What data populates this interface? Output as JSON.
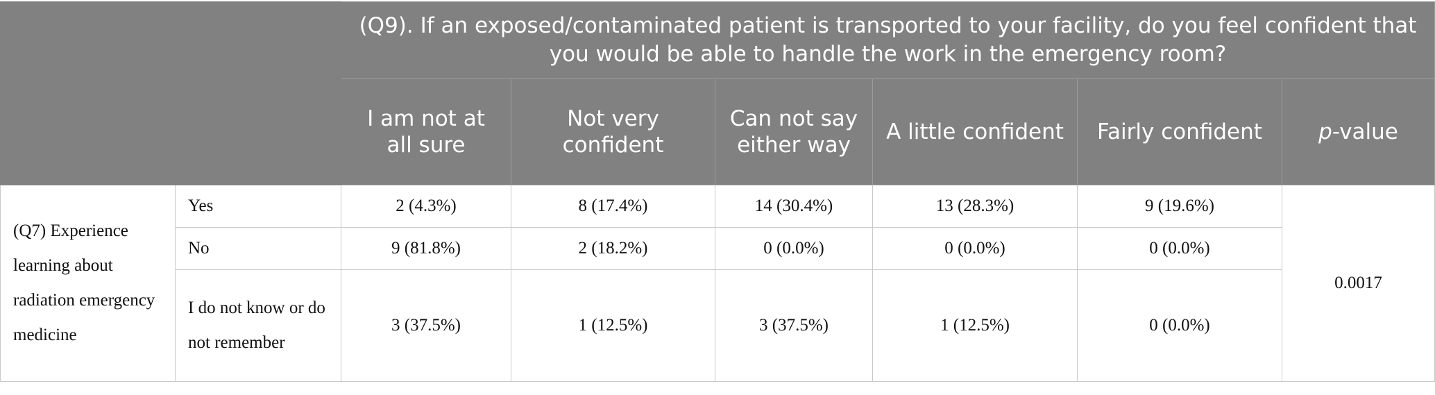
{
  "header": {
    "question": "(Q9). If an exposed/contaminated patient is transported to your facility, do you feel confident that you would be able to handle the work in the emergency room?",
    "columns": [
      "I am not at all sure",
      "Not very confident",
      "Can not say either way",
      "A little confident",
      "Fairly confident"
    ],
    "pvalue_p": "p",
    "pvalue_rest": "-value"
  },
  "body": {
    "group_label": "(Q7) Experience learning about radiation emergency medicine",
    "rows": [
      {
        "label": "Yes",
        "values": [
          "2 (4.3%)",
          "8 (17.4%)",
          "14 (30.4%)",
          "13 (28.3%)",
          "9 (19.6%)"
        ]
      },
      {
        "label": "No",
        "values": [
          "9 (81.8%)",
          "2 (18.2%)",
          "0 (0.0%)",
          "0 (0.0%)",
          "0 (0.0%)"
        ]
      },
      {
        "label": "I do not know or do not remember",
        "values": [
          "3 (37.5%)",
          "1 (12.5%)",
          "3 (37.5%)",
          "1 (12.5%)",
          "0 (0.0%)"
        ]
      }
    ],
    "p_value": "0.0017"
  }
}
